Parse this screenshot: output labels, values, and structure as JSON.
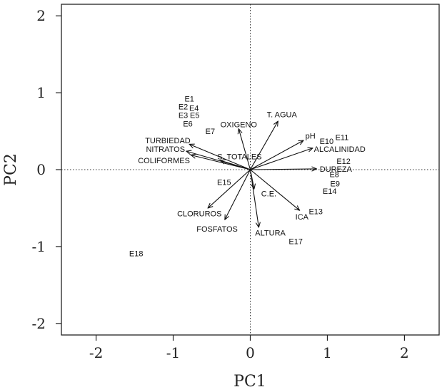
{
  "chart_data": {
    "type": "scatter",
    "subtype": "pca-biplot",
    "title": "",
    "xlabel": "PC1",
    "ylabel": "PC2",
    "xlim": [
      -2.45,
      2.45
    ],
    "ylim": [
      -2.15,
      2.15
    ],
    "xticks": [
      -2,
      -1,
      0,
      1,
      2
    ],
    "yticks": [
      -2,
      -1,
      0,
      1,
      2
    ],
    "grid": false,
    "reference_lines": {
      "x": 0,
      "y": 0,
      "style": "dotted"
    },
    "sites": [
      {
        "label": "E1",
        "x": -0.79,
        "y": 0.92
      },
      {
        "label": "E2",
        "x": -0.87,
        "y": 0.82
      },
      {
        "label": "E4",
        "x": -0.73,
        "y": 0.8
      },
      {
        "label": "E3",
        "x": -0.87,
        "y": 0.71
      },
      {
        "label": "E5",
        "x": -0.72,
        "y": 0.71
      },
      {
        "label": "E6",
        "x": -0.81,
        "y": 0.6
      },
      {
        "label": "E7",
        "x": -0.52,
        "y": 0.5
      },
      {
        "label": "E10",
        "x": 0.99,
        "y": 0.37
      },
      {
        "label": "E11",
        "x": 1.19,
        "y": 0.42
      },
      {
        "label": "E12",
        "x": 1.21,
        "y": 0.11
      },
      {
        "label": "E8",
        "x": 1.09,
        "y": -0.06
      },
      {
        "label": "E9",
        "x": 1.1,
        "y": -0.18
      },
      {
        "label": "E14",
        "x": 1.03,
        "y": -0.28
      },
      {
        "label": "E15",
        "x": -0.34,
        "y": -0.16
      },
      {
        "label": "E13",
        "x": 0.85,
        "y": -0.54
      },
      {
        "label": "E17",
        "x": 0.59,
        "y": -0.93
      },
      {
        "label": "E18",
        "x": -1.48,
        "y": -1.09
      }
    ],
    "variables": [
      {
        "label": "OXIGENO",
        "x": -0.15,
        "y": 0.53,
        "lx": -0.15,
        "ly": 0.59
      },
      {
        "label": "T. AGUA",
        "x": 0.36,
        "y": 0.63,
        "lx": 0.41,
        "ly": 0.72
      },
      {
        "label": "pH",
        "x": 0.69,
        "y": 0.38,
        "lx": 0.78,
        "ly": 0.44
      },
      {
        "label": "ALCALINIDAD",
        "x": 0.81,
        "y": 0.28,
        "lx": 1.16,
        "ly": 0.27
      },
      {
        "label": "DUREZA",
        "x": 0.86,
        "y": 0.01,
        "lx": 1.11,
        "ly": 0.01
      },
      {
        "label": "TURBIEDAD",
        "x": -0.79,
        "y": 0.33,
        "lx": -1.07,
        "ly": 0.38
      },
      {
        "label": "NITRATOS",
        "x": -0.83,
        "y": 0.24,
        "lx": -1.1,
        "ly": 0.27
      },
      {
        "label": "COLIFORMES",
        "x": -0.77,
        "y": 0.19,
        "lx": -1.12,
        "ly": 0.12
      },
      {
        "label": "S. TOTALES",
        "x": -0.39,
        "y": 0.12,
        "lx": -0.14,
        "ly": 0.17
      },
      {
        "label": "C.E.",
        "x": 0.05,
        "y": -0.25,
        "lx": 0.24,
        "ly": -0.31
      },
      {
        "label": "ICA",
        "x": 0.64,
        "y": -0.53,
        "lx": 0.67,
        "ly": -0.61
      },
      {
        "label": "ALTURA",
        "x": 0.11,
        "y": -0.75,
        "lx": 0.26,
        "ly": -0.82
      },
      {
        "label": "CLORUROS",
        "x": -0.55,
        "y": -0.5,
        "lx": -0.66,
        "ly": -0.57
      },
      {
        "label": "FOSFATOS",
        "x": -0.33,
        "y": -0.65,
        "lx": -0.43,
        "ly": -0.77
      }
    ]
  }
}
